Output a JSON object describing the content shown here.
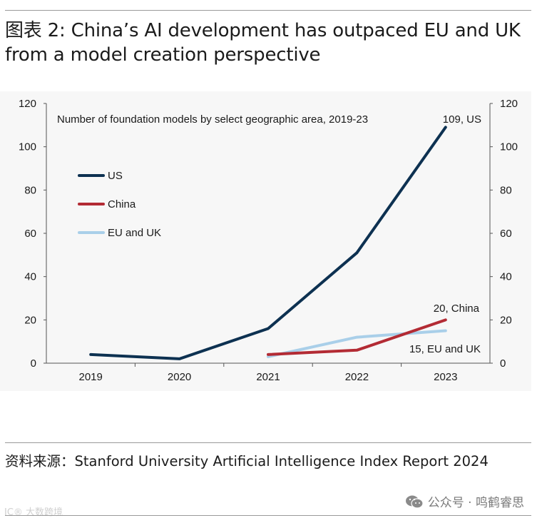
{
  "header": {
    "title": "图表 2: China’s AI development has outpaced EU and UK from a model creation perspective"
  },
  "chart_data": {
    "type": "line",
    "title": "Number of foundation models by select geographic area, 2019-23",
    "categories": [
      "2019",
      "2020",
      "2021",
      "2022",
      "2023"
    ],
    "series": [
      {
        "name": "US",
        "color": "#0d3151",
        "values": [
          4,
          2,
          16,
          51,
          109
        ]
      },
      {
        "name": "China",
        "color": "#b32b34",
        "values": [
          null,
          null,
          4,
          6,
          20
        ]
      },
      {
        "name": "EU and UK",
        "color": "#a9cfe9",
        "values": [
          null,
          null,
          3,
          12,
          15
        ]
      }
    ],
    "ylim": [
      0,
      120
    ],
    "yticks": [
      "0",
      "20",
      "40",
      "60",
      "80",
      "100",
      "120"
    ],
    "annotations": [
      {
        "text": "109, US",
        "series": "US"
      },
      {
        "text": "20, China",
        "series": "China"
      },
      {
        "text": "15, EU and UK",
        "series": "EU and UK"
      }
    ],
    "legend_position": "left"
  },
  "footer": {
    "source": "资料来源：Stanford University Artificial Intelligence Index Report 2024",
    "wechat": "公众号 · 鸣鹤睿思",
    "watermark": "IC® 大数跨境"
  }
}
